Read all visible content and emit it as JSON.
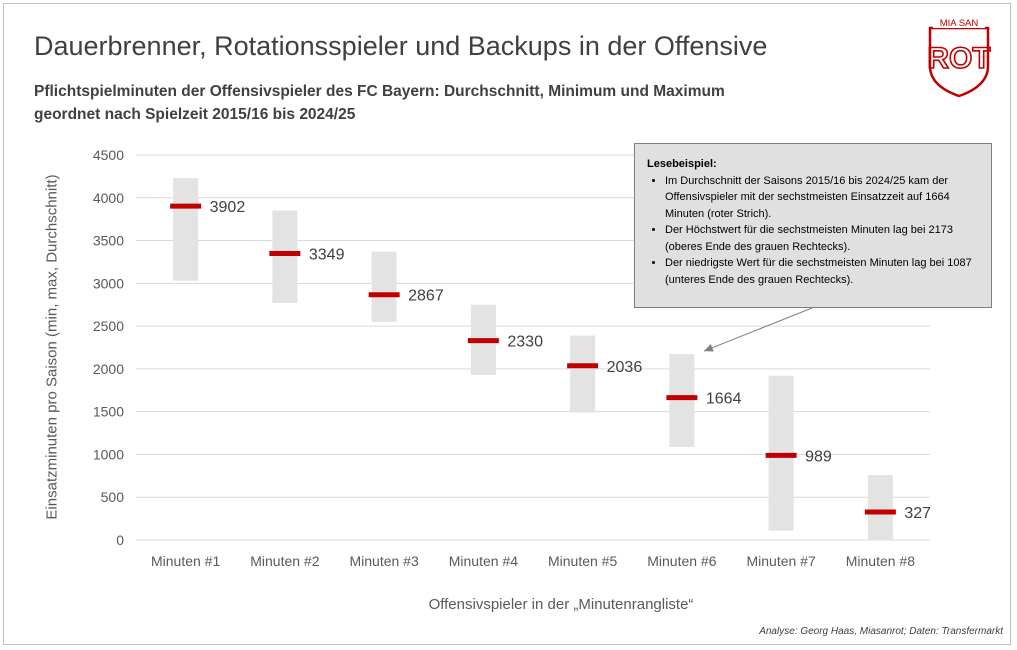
{
  "title": "Dauerbrenner, Rotationsspieler und Backups in der Offensive",
  "subtitle_lines": [
    "Pflichtspielminuten der Offensivspieler des FC Bayern: Durchschnitt, Minimum und Maximum",
    "geordnet nach Spielzeit 2015/16 bis 2024/25"
  ],
  "logo": {
    "top_text": "MIA SAN",
    "main_text": "ROT",
    "color": "#c00000"
  },
  "source": "Analyse: Georg Haas, Miasanrot; Daten: Transfermarkt",
  "callout": {
    "title": "Lesebeispiel:",
    "bullets": [
      "Im Durchschnitt der Saisons 2015/16 bis 2024/25 kam der Offensivspieler mit der sechstmeisten Einsatzzeit auf 1664 Minuten (roter Strich).",
      "Der Höchstwert für die sechstmeisten Minuten lag bei 2173 (oberes Ende des grauen Rechtecks).",
      "Der niedrigste Wert für die sechstmeisten Minuten lag bei 1087 (unteres Ende des grauen Rechtecks)."
    ]
  },
  "chart_data": {
    "type": "bar",
    "title": "Dauerbrenner, Rotationsspieler und Backups in der Offensive",
    "xlabel": "Offensivspieler in der „Minutenrangliste“",
    "ylabel": "Einsatzminuten pro Saison (min, max, Durchschnitt)",
    "ylim": [
      0,
      4500
    ],
    "yticks": [
      0,
      500,
      1000,
      1500,
      2000,
      2500,
      3000,
      3500,
      4000,
      4500
    ],
    "grid": true,
    "categories": [
      "Minuten #1",
      "Minuten #2",
      "Minuten #3",
      "Minuten #4",
      "Minuten #5",
      "Minuten #6",
      "Minuten #7",
      "Minuten #8"
    ],
    "series": [
      {
        "values": [
          3902,
          3349,
          2867,
          2330,
          2036,
          1664,
          989,
          327
        ]
      },
      {
        "values": [
          3030,
          2770,
          2550,
          1930,
          1490,
          1087,
          110,
          0
        ]
      },
      {
        "values": [
          4230,
          3850,
          3370,
          2750,
          2390,
          2173,
          1920,
          760
        ]
      }
    ],
    "colors": {
      "mean_line": "#c00000",
      "range_bar": "#e3e3e3",
      "grid": "#d9d9d9",
      "text": "#595959"
    }
  }
}
